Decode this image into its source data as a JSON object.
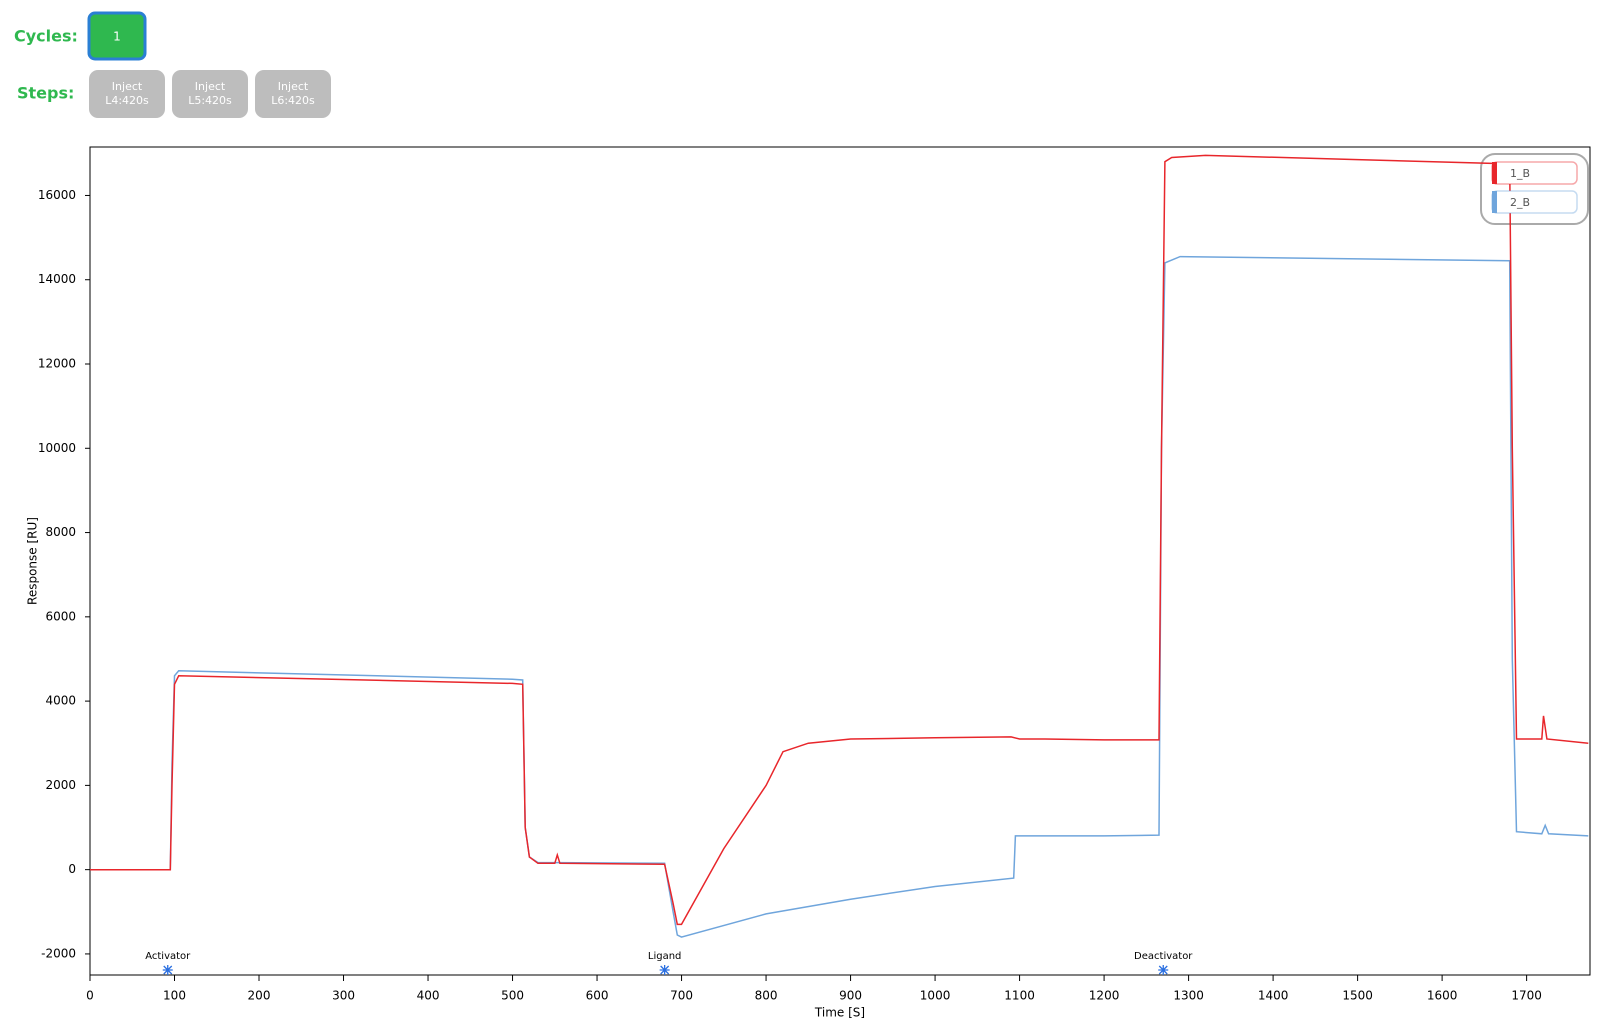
{
  "controls": {
    "cycles_label": "Cycles:",
    "cycle_buttons": [
      "1"
    ],
    "steps_label": "Steps:",
    "steps": [
      {
        "line1": "Inject",
        "line2": "L4:420s"
      },
      {
        "line1": "Inject",
        "line2": "L5:420s"
      },
      {
        "line1": "Inject",
        "line2": "L6:420s"
      }
    ]
  },
  "chart_data": {
    "type": "line",
    "x_label": "Time [S]",
    "y_label": "Response [RU]",
    "xlim": [
      0,
      1775
    ],
    "ylim": [
      -2500,
      17150
    ],
    "xticks": [
      0,
      100,
      200,
      300,
      400,
      500,
      600,
      700,
      800,
      900,
      1000,
      1100,
      1200,
      1300,
      1400,
      1500,
      1600,
      1700
    ],
    "yticks": [
      -2000,
      0,
      2000,
      4000,
      6000,
      8000,
      10000,
      12000,
      14000,
      16000
    ],
    "legend_position": "top-right",
    "annotations": [
      {
        "x": 92,
        "label": "Activator"
      },
      {
        "x": 680,
        "label": "Ligand"
      },
      {
        "x": 1270,
        "label": "Deactivator"
      }
    ],
    "series": [
      {
        "name": "1_B",
        "color": "#e8262b",
        "x": [
          0,
          95,
          97,
          100,
          105,
          500,
          512,
          515,
          520,
          530,
          550,
          553,
          556,
          680,
          690,
          695,
          700,
          750,
          800,
          820,
          850,
          900,
          1000,
          1090,
          1100,
          1130,
          1200,
          1265,
          1268,
          1272,
          1280,
          1320,
          1500,
          1680,
          1683,
          1688,
          1700,
          1718,
          1720,
          1724,
          1773
        ],
        "values": [
          0,
          0,
          2000,
          4400,
          4600,
          4420,
          4400,
          1000,
          300,
          150,
          150,
          350,
          150,
          130,
          -800,
          -1300,
          -1300,
          500,
          2000,
          2800,
          3000,
          3100,
          3130,
          3150,
          3100,
          3100,
          3080,
          3080,
          10000,
          16800,
          16900,
          16950,
          16850,
          16750,
          10000,
          3100,
          3100,
          3100,
          3650,
          3100,
          3000
        ]
      },
      {
        "name": "2_B",
        "color": "#6fa5dc",
        "x": [
          0,
          95,
          97,
          100,
          105,
          500,
          512,
          515,
          520,
          530,
          680,
          690,
          695,
          700,
          800,
          900,
          1000,
          1093,
          1095,
          1200,
          1265,
          1268,
          1272,
          1290,
          1680,
          1683,
          1688,
          1718,
          1722,
          1726,
          1773
        ],
        "values": [
          0,
          0,
          2500,
          4600,
          4720,
          4520,
          4500,
          1000,
          300,
          170,
          150,
          -1000,
          -1550,
          -1600,
          -1050,
          -700,
          -400,
          -200,
          800,
          800,
          820,
          10000,
          14400,
          14550,
          14450,
          5000,
          900,
          850,
          1050,
          850,
          800
        ]
      }
    ]
  }
}
